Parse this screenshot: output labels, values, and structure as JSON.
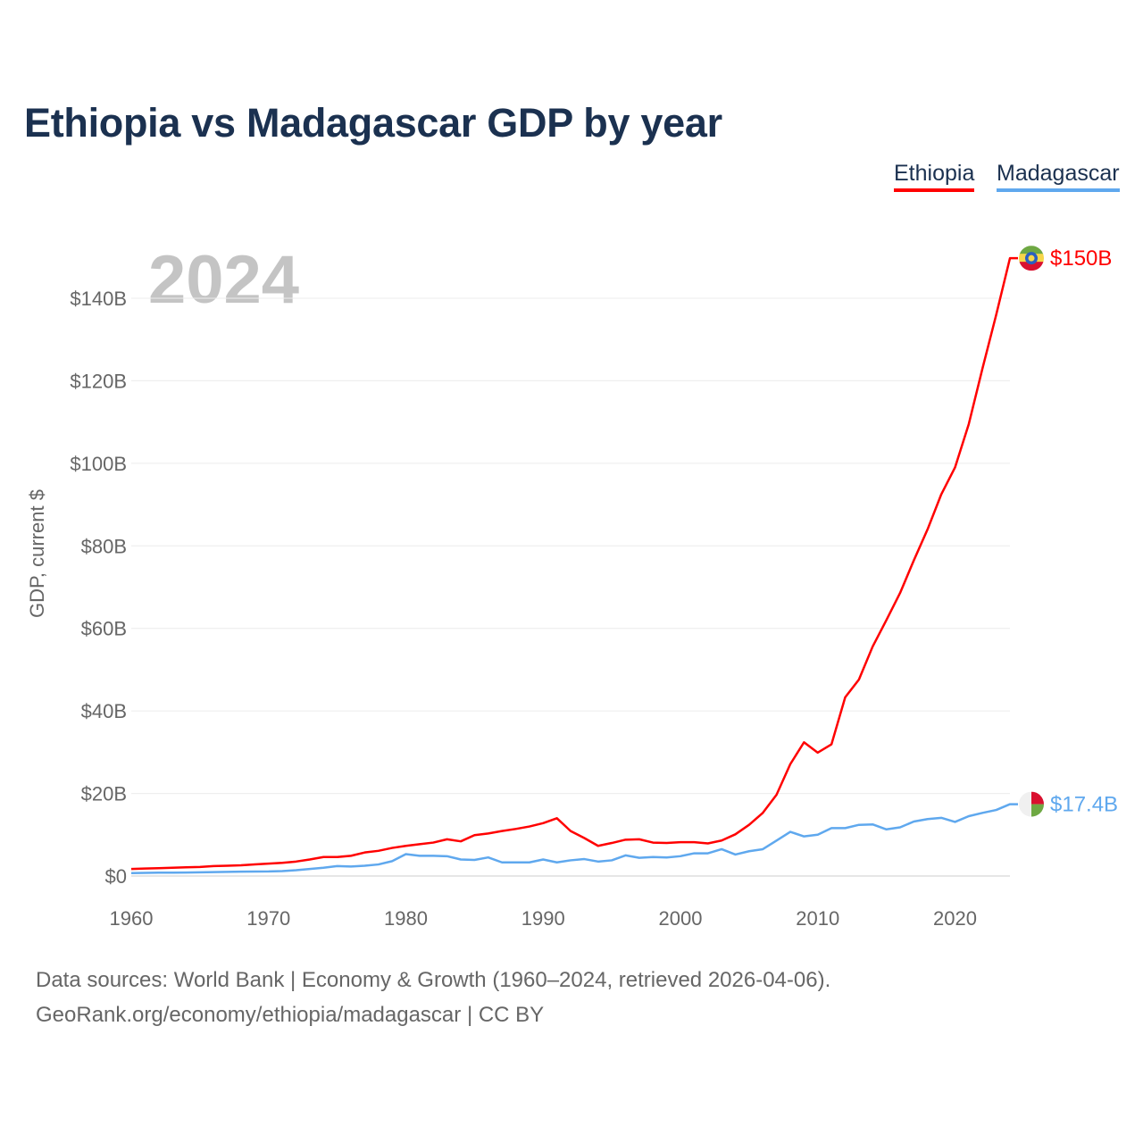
{
  "title": "Ethiopia vs Madagascar GDP by year",
  "legend": [
    "Ethiopia",
    "Madagascar"
  ],
  "current_year": "2024",
  "footer": {
    "line1": "Data sources: World Bank | Economy & Growth (1960–2024, retrieved 2026-04-06).",
    "line2": "GeoRank.org/economy/ethiopia/madagascar | CC BY"
  },
  "chart_data": {
    "type": "line",
    "title": "Ethiopia vs Madagascar GDP by year",
    "xlabel": "",
    "ylabel": "GDP, current $",
    "xlim": [
      1960,
      2024
    ],
    "ylim": [
      0,
      140
    ],
    "y_unit": "billion USD",
    "x_ticks": [
      "1960",
      "1970",
      "1980",
      "1990",
      "2000",
      "2010",
      "2020"
    ],
    "y_ticks": [
      "$0",
      "$20B",
      "$40B",
      "$60B",
      "$80B",
      "$100B",
      "$120B",
      "$140B"
    ],
    "grid": true,
    "legend_position": "top-right",
    "x": [
      1960,
      1961,
      1962,
      1963,
      1964,
      1965,
      1966,
      1967,
      1968,
      1969,
      1970,
      1971,
      1972,
      1973,
      1974,
      1975,
      1976,
      1977,
      1978,
      1979,
      1980,
      1981,
      1982,
      1983,
      1984,
      1985,
      1986,
      1987,
      1988,
      1989,
      1990,
      1991,
      1992,
      1993,
      1994,
      1995,
      1996,
      1997,
      1998,
      1999,
      2000,
      2001,
      2002,
      2003,
      2004,
      2005,
      2006,
      2007,
      2008,
      2009,
      2010,
      2011,
      2012,
      2013,
      2014,
      2015,
      2016,
      2017,
      2018,
      2019,
      2020,
      2021,
      2022,
      2023,
      2024
    ],
    "series": [
      {
        "name": "Ethiopia",
        "color": "#ff0000",
        "end_label": "$150B",
        "values": [
          1.7,
          1.8,
          1.9,
          2.0,
          2.1,
          2.2,
          2.4,
          2.5,
          2.6,
          2.8,
          3.0,
          3.2,
          3.5,
          4.0,
          4.6,
          4.6,
          4.9,
          5.7,
          6.1,
          6.8,
          7.3,
          7.7,
          8.1,
          8.9,
          8.4,
          9.9,
          10.3,
          10.9,
          11.4,
          12.0,
          12.8,
          14.0,
          10.9,
          9.2,
          7.3,
          8.0,
          8.8,
          8.9,
          8.1,
          8.0,
          8.2,
          8.2,
          7.9,
          8.6,
          10.1,
          12.4,
          15.3,
          19.7,
          27.1,
          32.4,
          29.9,
          31.9,
          43.3,
          47.6,
          55.6,
          62.0,
          68.6,
          76.5,
          84.0,
          92.5,
          99.0,
          109.5,
          123.0,
          136.0,
          149.7
        ]
      },
      {
        "name": "Madagascar",
        "color": "#5fa8ee",
        "end_label": "$17.4B",
        "values": [
          0.7,
          0.75,
          0.8,
          0.82,
          0.85,
          0.9,
          0.95,
          1.0,
          1.05,
          1.08,
          1.1,
          1.2,
          1.4,
          1.7,
          2.0,
          2.4,
          2.3,
          2.5,
          2.8,
          3.6,
          5.3,
          4.9,
          4.9,
          4.8,
          4.0,
          3.9,
          4.5,
          3.3,
          3.3,
          3.3,
          4.0,
          3.3,
          3.8,
          4.1,
          3.5,
          3.8,
          5.0,
          4.4,
          4.6,
          4.5,
          4.8,
          5.5,
          5.5,
          6.5,
          5.2,
          6.0,
          6.5,
          8.6,
          10.7,
          9.6,
          10.0,
          11.6,
          11.6,
          12.4,
          12.5,
          11.3,
          11.8,
          13.2,
          13.8,
          14.1,
          13.1,
          14.5,
          15.3,
          16.0,
          17.4
        ]
      }
    ]
  }
}
